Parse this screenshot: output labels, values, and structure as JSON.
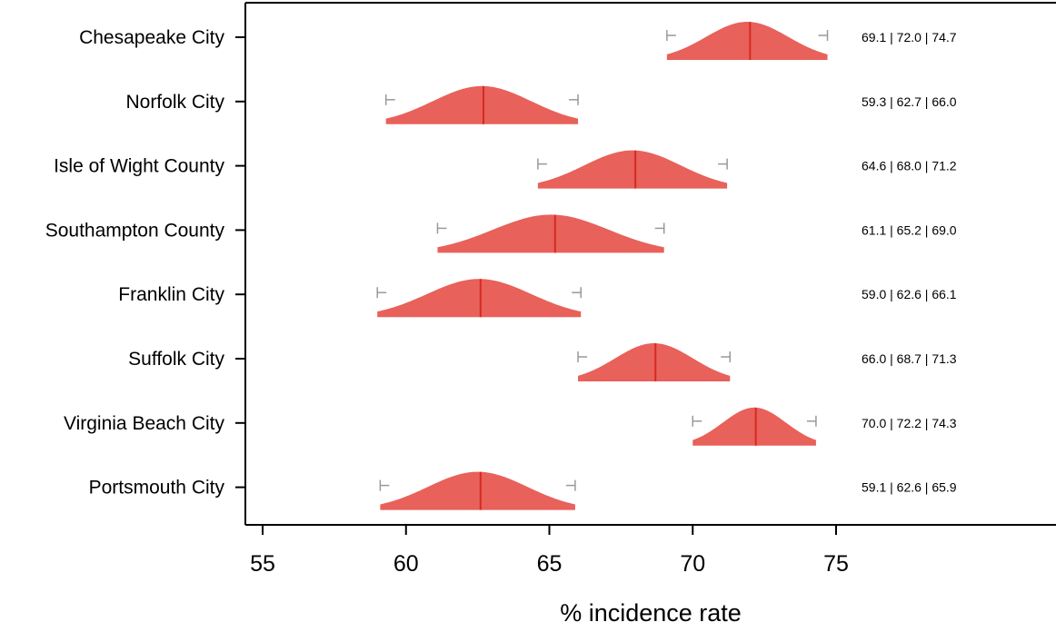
{
  "chart_data": {
    "type": "ridgeline",
    "xlabel": "% incidence rate",
    "xlim": [
      54.5,
      81.5
    ],
    "xticks": [
      "55",
      "60",
      "65",
      "70",
      "75"
    ],
    "colors": {
      "density": "#e8615a",
      "median_line": "#d62a22",
      "whisker": "#999999",
      "axis": "#000000"
    },
    "series": [
      {
        "name": "Chesapeake City",
        "lower": 69.1,
        "median": 72.0,
        "upper": 74.7,
        "label": "69.1 | 72.0 | 74.7"
      },
      {
        "name": "Norfolk City",
        "lower": 59.3,
        "median": 62.7,
        "upper": 66.0,
        "label": "59.3 | 62.7 | 66.0"
      },
      {
        "name": "Isle of Wight County",
        "lower": 64.6,
        "median": 68.0,
        "upper": 71.2,
        "label": "64.6 | 68.0 | 71.2"
      },
      {
        "name": "Southampton County",
        "lower": 61.1,
        "median": 65.2,
        "upper": 69.0,
        "label": "61.1 | 65.2 | 69.0"
      },
      {
        "name": "Franklin City",
        "lower": 59.0,
        "median": 62.6,
        "upper": 66.1,
        "label": "59.0 | 62.6 | 66.1"
      },
      {
        "name": "Suffolk City",
        "lower": 66.0,
        "median": 68.7,
        "upper": 71.3,
        "label": "66.0 | 68.7 | 71.3"
      },
      {
        "name": "Virginia Beach City",
        "lower": 70.0,
        "median": 72.2,
        "upper": 74.3,
        "label": "70.0 | 72.2 | 74.3"
      },
      {
        "name": "Portsmouth City",
        "lower": 59.1,
        "median": 62.6,
        "upper": 65.9,
        "label": "59.1 | 62.6 | 65.9"
      }
    ]
  }
}
